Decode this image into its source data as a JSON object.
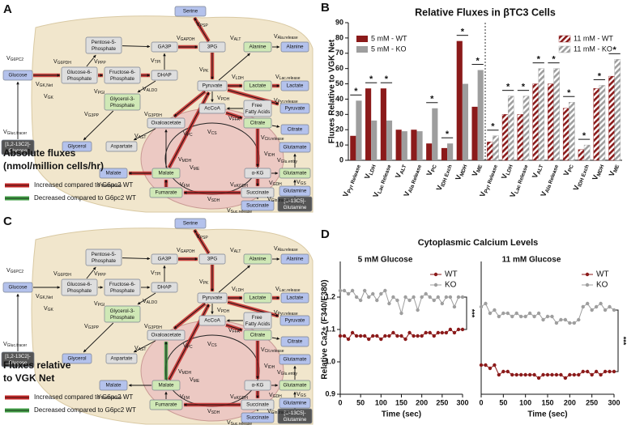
{
  "diagrams": [
    {
      "label": "A",
      "caption": [
        "Absolute fluxes",
        "(nmol/million cells/hr)"
      ],
      "legend": [
        {
          "text": "Increased compared to G6pc2 WT",
          "color": "#c62828"
        },
        {
          "text": "Decreased compared to G6pc2 WT",
          "color": "#43a047"
        }
      ]
    },
    {
      "label": "C",
      "caption": [
        "Fluxes relative",
        "to VGK Net"
      ],
      "legend": [
        {
          "text": "Increased compared to G6pc2 WT",
          "color": "#c62828"
        },
        {
          "text": "Decreased compared to G6pc2 WT",
          "color": "#43a047"
        }
      ]
    }
  ],
  "metabolic_map": {
    "nodes": [
      {
        "label": "Serine",
        "color": "#b4c2ec"
      },
      {
        "label": "Pentose-5-Phosphate",
        "color": "#dedede"
      },
      {
        "label": "GA3P",
        "color": "#dedede"
      },
      {
        "label": "3PG",
        "color": "#dedede"
      },
      {
        "label": "Alanine",
        "color": "#cfe8b6"
      },
      {
        "label": "Alanine",
        "color": "#b4c2ec"
      },
      {
        "label": "Glucose",
        "color": "#b4c2ec"
      },
      {
        "label": "Glucose-6-Phosphate",
        "color": "#dedede"
      },
      {
        "label": "Fructose-6-Phosphate",
        "color": "#dedede"
      },
      {
        "label": "DHAP",
        "color": "#dedede"
      },
      {
        "label": "Pyruvate",
        "color": "#dedede"
      },
      {
        "label": "Lactate",
        "color": "#cfe8b6"
      },
      {
        "label": "Lactate",
        "color": "#b4c2ec"
      },
      {
        "label": "Glycerol-3-Phosphate",
        "color": "#cfe8b6"
      },
      {
        "label": "AcCoA",
        "color": "#dedede"
      },
      {
        "label": "Free Fatty Acids",
        "color": "#dedede"
      },
      {
        "label": "Pyruvate",
        "color": "#b4c2ec"
      },
      {
        "label": "Oxaloacetate",
        "color": "#dedede"
      },
      {
        "label": "Citrate",
        "color": "#cfe8b6"
      },
      {
        "label": "Citrate",
        "color": "#b4c2ec"
      },
      {
        "label": "[1,2-13C2]-Glucose",
        "color": "#555555"
      },
      {
        "label": "Glycerol",
        "color": "#b4c2ec"
      },
      {
        "label": "Aspartate",
        "color": "#dedede"
      },
      {
        "label": "Glutamate",
        "color": "#b4c2ec"
      },
      {
        "label": "Malate",
        "color": "#cfe8b6"
      },
      {
        "label": "α-KG",
        "color": "#dedede"
      },
      {
        "label": "Glutamate",
        "color": "#cfe8b6"
      },
      {
        "label": "Malate",
        "color": "#b4c2ec"
      },
      {
        "label": "Fumarate",
        "color": "#cfe8b6"
      },
      {
        "label": "Succinate",
        "color": "#dedede"
      },
      {
        "label": "Glutamine",
        "color": "#b4c2ec"
      },
      {
        "label": "Succinate",
        "color": "#b4c2ec"
      },
      {
        "label": "[U-13C5]-Glutamine",
        "color": "#555555"
      }
    ],
    "fluxes": [
      "VG6PC2",
      "VG6PDH",
      "VPPP",
      "VGAPDH",
      "VPSP",
      "VALT",
      "VAla.release",
      "VTPI",
      "VPK",
      "VLDH",
      "VLac.release",
      "VGK,Net",
      "VGK",
      "VPGI",
      "VALDO",
      "VPDH",
      "VPyr.release",
      "VG3PP",
      "VG3PDH",
      "VFFA",
      "VGluc.tracer",
      "VCit.release",
      "VPC",
      "VCS",
      "VIDH",
      "VGlu.entry",
      "VAST",
      "VMDH",
      "VME",
      "VGDH",
      "VGS",
      "VMal.release",
      "VFM",
      "VαKGDH",
      "VSDH",
      "VSuc.release",
      "VGln.tracer"
    ]
  },
  "panel_D": {
    "label": "D",
    "title": "Cytoplasmic Calcium Levels"
  },
  "chart_data": [
    {
      "type": "bar",
      "panel": "B",
      "title": "Relative Fluxes in βTC3 Cells",
      "ylabel": "Fluxes Relative to VGK Net",
      "categories": [
        "VPyr Release",
        "VLDH",
        "VLac Release",
        "VALT",
        "VAla Release",
        "VPC",
        "VIDH Exch",
        "VMDH",
        "VME",
        "VPyr Release",
        "VLDH",
        "VLac Release",
        "VALT",
        "VAla Release",
        "VPC",
        "VIDH Exch",
        "VMDH",
        "VME"
      ],
      "series": [
        {
          "name": "5 mM - WT",
          "color": "#8b1a1a",
          "hatch": false,
          "values": [
            16,
            47,
            47,
            20,
            20,
            11,
            8,
            78,
            35,
            null,
            null,
            null,
            null,
            null,
            null,
            null,
            null,
            null
          ]
        },
        {
          "name": "5 mM - KO",
          "color": "#9e9e9e",
          "hatch": false,
          "values": [
            39,
            26,
            26,
            19,
            19,
            34,
            11,
            50,
            59,
            null,
            null,
            null,
            null,
            null,
            null,
            null,
            null,
            null
          ]
        },
        {
          "name": "11 mM - WT",
          "color": "#8b1a1a",
          "hatch": true,
          "values": [
            null,
            null,
            null,
            null,
            null,
            null,
            null,
            null,
            null,
            12,
            30,
            30,
            50,
            50,
            34,
            7,
            47,
            55
          ]
        },
        {
          "name": "11 mM - KO",
          "color": "#9e9e9e",
          "hatch": true,
          "values": [
            null,
            null,
            null,
            null,
            null,
            null,
            null,
            null,
            null,
            16,
            42,
            42,
            60,
            60,
            38,
            10,
            49,
            66
          ]
        }
      ],
      "significant": [
        true,
        true,
        true,
        false,
        false,
        true,
        true,
        true,
        true,
        true,
        true,
        true,
        true,
        true,
        true,
        true,
        true,
        true
      ],
      "significance_label": "*",
      "ylim": [
        0,
        90
      ],
      "yticks": [
        0,
        10,
        20,
        30,
        40,
        50,
        60,
        70,
        80,
        90
      ]
    },
    {
      "type": "line",
      "subtitle": "5 mM  Glucose",
      "xlabel": "Time (sec)",
      "ylabel": "Relative Ca2+ (F340/F380)",
      "x": [
        0,
        10,
        20,
        30,
        40,
        50,
        60,
        70,
        80,
        90,
        100,
        110,
        120,
        130,
        140,
        150,
        160,
        170,
        180,
        190,
        200,
        210,
        220,
        230,
        240,
        250,
        260,
        270,
        280,
        290,
        300
      ],
      "series": [
        {
          "name": "WT",
          "color": "#8b1a1a",
          "values": [
            1.08,
            1.08,
            1.07,
            1.09,
            1.08,
            1.08,
            1.08,
            1.07,
            1.08,
            1.08,
            1.07,
            1.08,
            1.08,
            1.09,
            1.08,
            1.08,
            1.07,
            1.09,
            1.08,
            1.08,
            1.08,
            1.09,
            1.09,
            1.08,
            1.09,
            1.09,
            1.09,
            1.1,
            1.09,
            1.1,
            1.1
          ]
        },
        {
          "name": "KO",
          "color": "#9e9e9e",
          "values": [
            1.22,
            1.22,
            1.21,
            1.22,
            1.2,
            1.19,
            1.22,
            1.2,
            1.21,
            1.19,
            1.21,
            1.22,
            1.18,
            1.2,
            1.19,
            1.15,
            1.2,
            1.19,
            1.2,
            1.16,
            1.2,
            1.21,
            1.2,
            1.19,
            1.2,
            1.18,
            1.2,
            1.2,
            1.17,
            1.2,
            1.2
          ]
        }
      ],
      "significance_label": "***",
      "xlim": [
        0,
        300
      ],
      "xticks": [
        0,
        50,
        100,
        150,
        200,
        250,
        300
      ],
      "ylim": [
        0.9,
        1.3
      ],
      "yticks": [
        0.9,
        {
          "value": 1.0,
          "label": "1.0"
        },
        1.1,
        1.2
      ]
    },
    {
      "type": "line",
      "subtitle": "11 mM  Glucose",
      "xlabel": "Time (sec)",
      "x": [
        0,
        10,
        20,
        30,
        40,
        50,
        60,
        70,
        80,
        90,
        100,
        110,
        120,
        130,
        140,
        150,
        160,
        170,
        180,
        190,
        200,
        210,
        220,
        230,
        240,
        250,
        260,
        270,
        280,
        290,
        300
      ],
      "series": [
        {
          "name": "WT",
          "color": "#8b1a1a",
          "values": [
            0.99,
            0.99,
            0.98,
            0.99,
            0.96,
            0.97,
            0.97,
            0.96,
            0.96,
            0.96,
            0.96,
            0.96,
            0.96,
            0.95,
            0.96,
            0.96,
            0.96,
            0.96,
            0.96,
            0.95,
            0.96,
            0.96,
            0.96,
            0.97,
            0.97,
            0.96,
            0.97,
            0.96,
            0.97,
            0.97,
            0.97
          ]
        },
        {
          "name": "KO",
          "color": "#9e9e9e",
          "values": [
            1.17,
            1.18,
            1.15,
            1.16,
            1.14,
            1.15,
            1.15,
            1.14,
            1.15,
            1.14,
            1.14,
            1.15,
            1.14,
            1.15,
            1.13,
            1.14,
            1.14,
            1.12,
            1.13,
            1.13,
            1.12,
            1.12,
            1.13,
            1.17,
            1.18,
            1.16,
            1.17,
            1.18,
            1.16,
            1.17,
            1.16
          ]
        }
      ],
      "significance_label": "***",
      "xlim": [
        0,
        300
      ],
      "xticks": [
        0,
        50,
        100,
        150,
        200,
        250,
        300
      ],
      "ylim": [
        0.9,
        1.3
      ]
    }
  ]
}
